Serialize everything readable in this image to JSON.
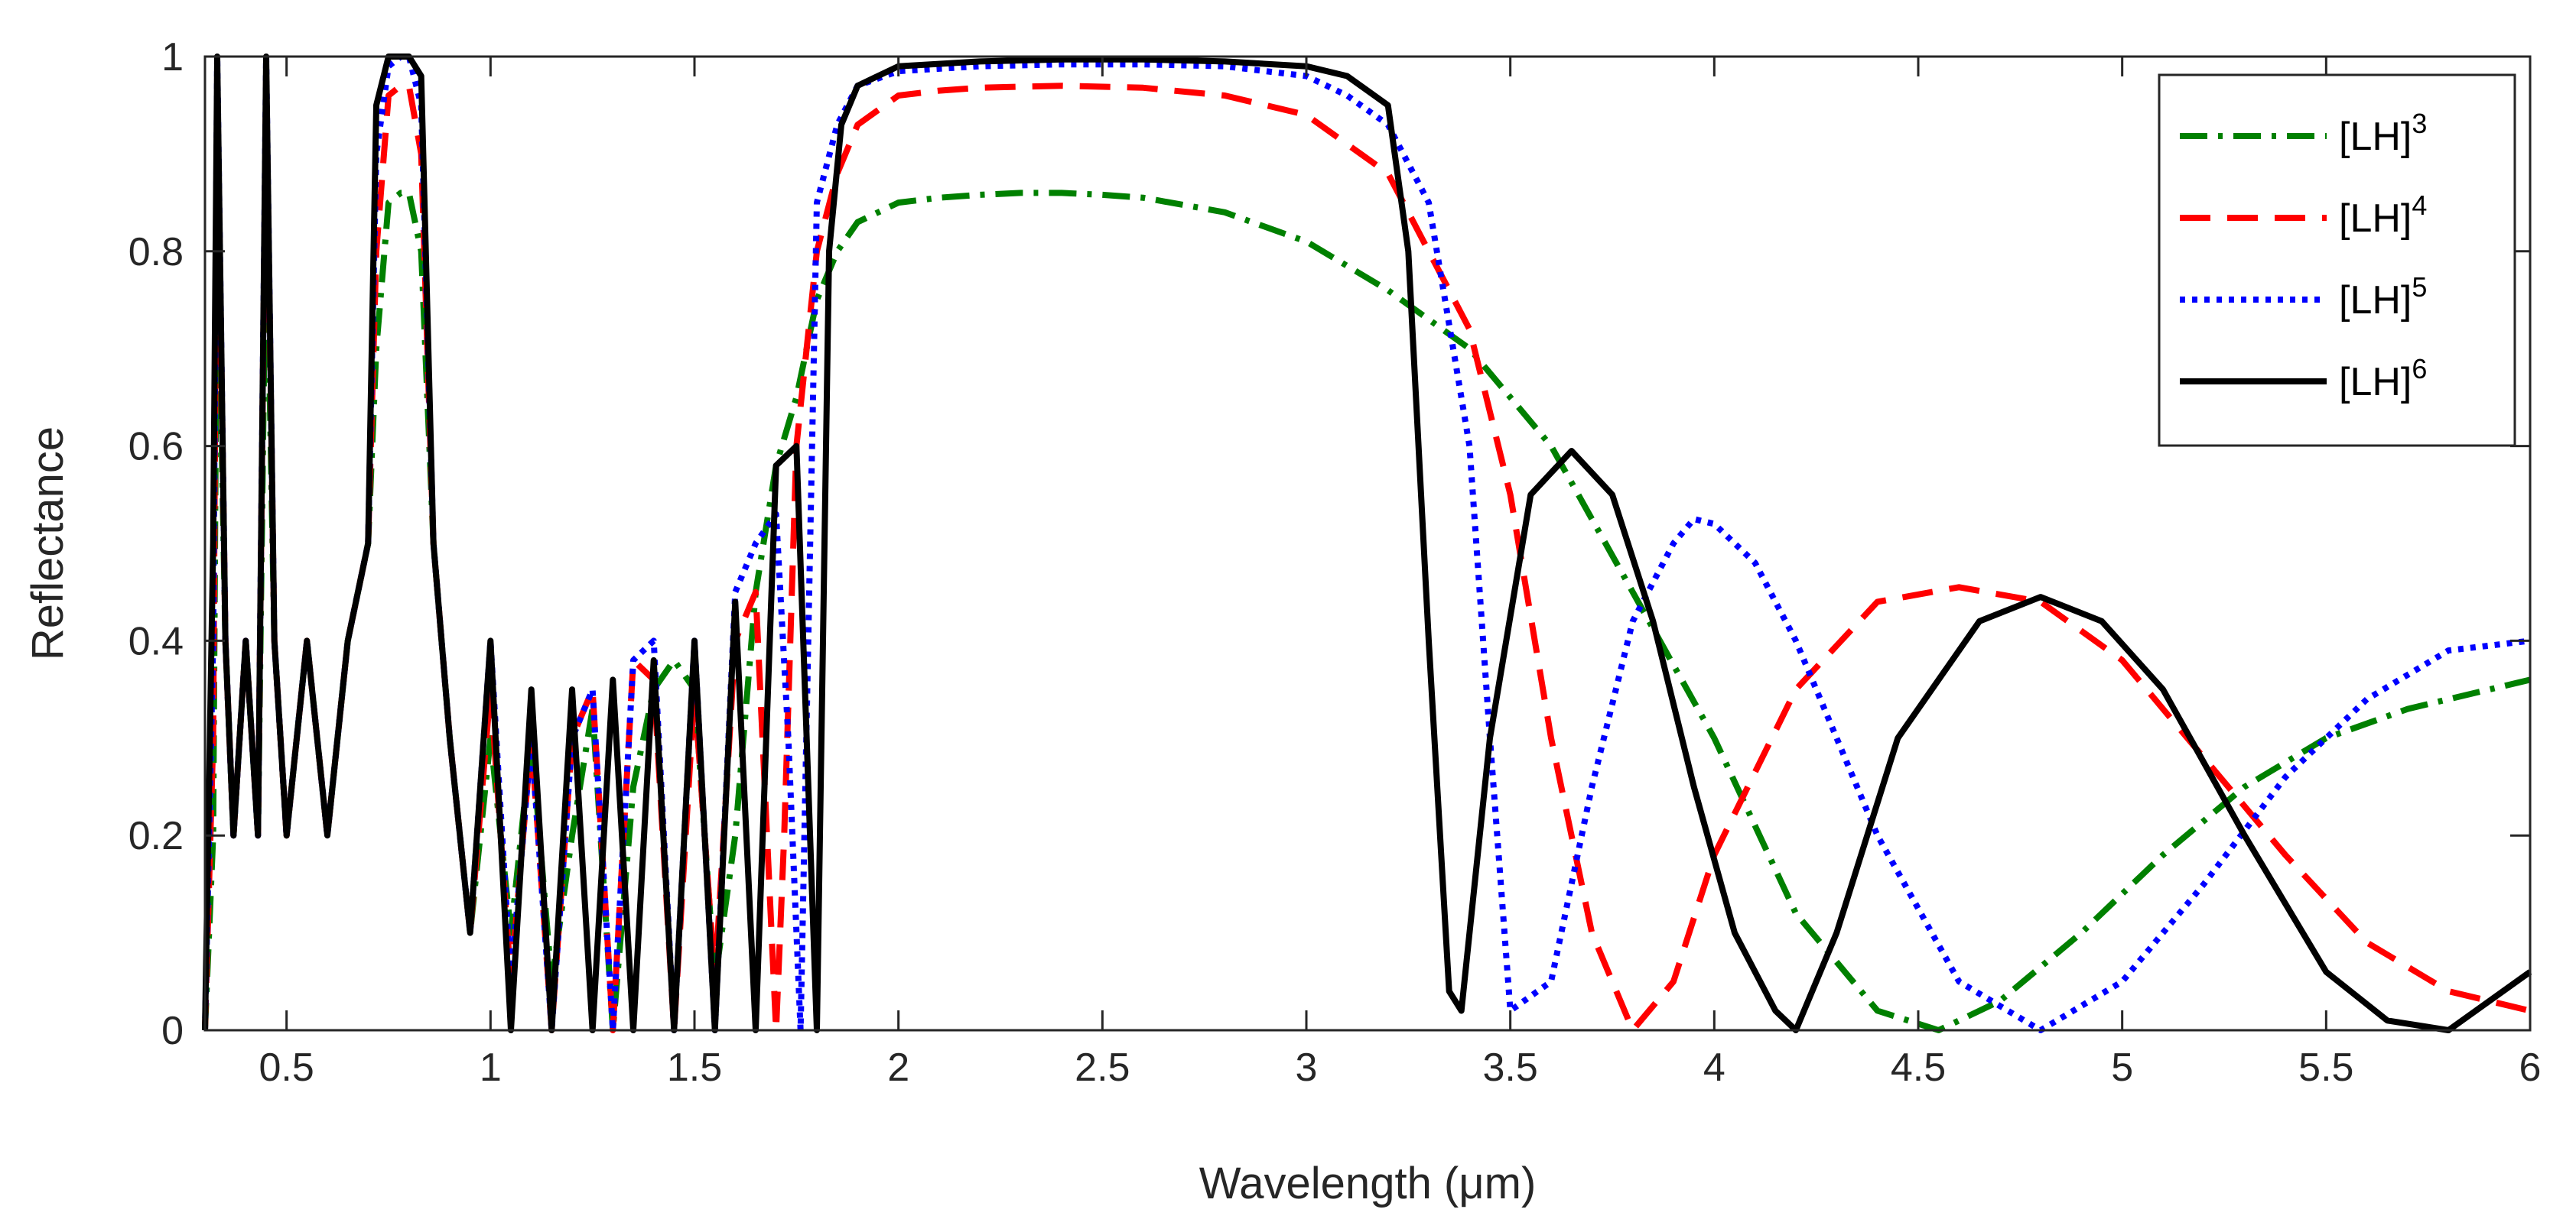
{
  "chart_data": {
    "type": "line",
    "title": "",
    "xlabel": "Wavelength (μm)",
    "ylabel": "Reflectance",
    "xlim": [
      0.3,
      6
    ],
    "ylim": [
      0,
      1
    ],
    "xticks": [
      0.5,
      1,
      1.5,
      2,
      2.5,
      3,
      3.5,
      4,
      4.5,
      5,
      5.5,
      6
    ],
    "xtick_labels": [
      "0.5",
      "1",
      "1.5",
      "2",
      "2.5",
      "3",
      "3.5",
      "4",
      "4.5",
      "5",
      "5.5",
      "6"
    ],
    "yticks": [
      0,
      0.2,
      0.4,
      0.6,
      0.8,
      1
    ],
    "ytick_labels": [
      "0",
      "0.2",
      "0.4",
      "0.6",
      "0.8",
      "1"
    ],
    "grid": false,
    "legend_position": "top-right",
    "series": [
      {
        "name": "[LH]",
        "superscript": "3",
        "color": "#008000",
        "style": "dash-dot",
        "x": [
          0.3,
          0.32,
          0.33,
          0.35,
          0.37,
          0.4,
          0.43,
          0.45,
          0.47,
          0.5,
          0.55,
          0.6,
          0.65,
          0.7,
          0.72,
          0.75,
          0.78,
          0.8,
          0.83,
          0.86,
          0.9,
          0.95,
          1.0,
          1.05,
          1.1,
          1.15,
          1.2,
          1.25,
          1.3,
          1.35,
          1.4,
          1.45,
          1.5,
          1.55,
          1.6,
          1.65,
          1.7,
          1.75,
          1.8,
          1.85,
          1.9,
          2.0,
          2.1,
          2.2,
          2.3,
          2.4,
          2.5,
          2.6,
          2.8,
          3.0,
          3.2,
          3.4,
          3.6,
          3.8,
          4.0,
          4.2,
          4.4,
          4.55,
          4.7,
          4.9,
          5.1,
          5.3,
          5.5,
          5.7,
          5.9,
          6.0
        ],
        "y": [
          0.0,
          0.2,
          0.85,
          0.4,
          0.2,
          0.4,
          0.2,
          0.85,
          0.4,
          0.2,
          0.4,
          0.2,
          0.4,
          0.5,
          0.7,
          0.85,
          0.86,
          0.86,
          0.8,
          0.5,
          0.3,
          0.1,
          0.3,
          0.1,
          0.3,
          0.05,
          0.2,
          0.33,
          0.0,
          0.25,
          0.35,
          0.38,
          0.35,
          0.05,
          0.2,
          0.45,
          0.58,
          0.65,
          0.75,
          0.8,
          0.83,
          0.85,
          0.855,
          0.858,
          0.86,
          0.86,
          0.858,
          0.855,
          0.84,
          0.81,
          0.76,
          0.7,
          0.6,
          0.45,
          0.3,
          0.12,
          0.02,
          0.0,
          0.03,
          0.1,
          0.18,
          0.25,
          0.3,
          0.33,
          0.35,
          0.36
        ]
      },
      {
        "name": "[LH]",
        "superscript": "4",
        "color": "#ff0000",
        "style": "dashed",
        "x": [
          0.3,
          0.32,
          0.33,
          0.35,
          0.37,
          0.4,
          0.43,
          0.45,
          0.47,
          0.5,
          0.55,
          0.6,
          0.65,
          0.7,
          0.72,
          0.75,
          0.78,
          0.8,
          0.83,
          0.86,
          0.9,
          0.95,
          1.0,
          1.05,
          1.1,
          1.15,
          1.2,
          1.25,
          1.3,
          1.35,
          1.4,
          1.45,
          1.5,
          1.55,
          1.6,
          1.65,
          1.7,
          1.72,
          1.75,
          1.8,
          1.85,
          1.9,
          2.0,
          2.1,
          2.2,
          2.4,
          2.6,
          2.8,
          3.0,
          3.2,
          3.3,
          3.4,
          3.5,
          3.6,
          3.7,
          3.8,
          3.9,
          4.0,
          4.2,
          4.4,
          4.6,
          4.8,
          5.0,
          5.2,
          5.4,
          5.6,
          5.8,
          6.0
        ],
        "y": [
          0.0,
          0.3,
          0.98,
          0.4,
          0.2,
          0.4,
          0.2,
          0.98,
          0.4,
          0.2,
          0.4,
          0.2,
          0.4,
          0.5,
          0.8,
          0.96,
          0.97,
          0.97,
          0.9,
          0.5,
          0.3,
          0.1,
          0.35,
          0.05,
          0.3,
          0.0,
          0.3,
          0.35,
          0.0,
          0.38,
          0.36,
          0.0,
          0.35,
          0.05,
          0.4,
          0.45,
          0.0,
          0.2,
          0.6,
          0.8,
          0.88,
          0.93,
          0.96,
          0.965,
          0.968,
          0.97,
          0.968,
          0.96,
          0.94,
          0.88,
          0.8,
          0.72,
          0.55,
          0.3,
          0.1,
          0.0,
          0.05,
          0.18,
          0.35,
          0.44,
          0.455,
          0.44,
          0.38,
          0.28,
          0.18,
          0.09,
          0.04,
          0.02
        ]
      },
      {
        "name": "[LH]",
        "superscript": "5",
        "color": "#0000ff",
        "style": "dotted",
        "x": [
          0.3,
          0.32,
          0.33,
          0.35,
          0.37,
          0.4,
          0.43,
          0.45,
          0.47,
          0.5,
          0.55,
          0.6,
          0.65,
          0.7,
          0.72,
          0.75,
          0.78,
          0.8,
          0.83,
          0.86,
          0.9,
          0.95,
          1.0,
          1.05,
          1.1,
          1.15,
          1.2,
          1.25,
          1.3,
          1.35,
          1.4,
          1.45,
          1.5,
          1.55,
          1.6,
          1.65,
          1.7,
          1.73,
          1.76,
          1.8,
          1.85,
          1.9,
          2.0,
          2.2,
          2.4,
          2.6,
          2.8,
          3.0,
          3.1,
          3.2,
          3.3,
          3.4,
          3.45,
          3.5,
          3.6,
          3.7,
          3.8,
          3.9,
          3.95,
          4.0,
          4.1,
          4.2,
          4.4,
          4.6,
          4.8,
          5.0,
          5.2,
          5.4,
          5.6,
          5.8,
          6.0
        ],
        "y": [
          0.0,
          0.4,
          1.0,
          0.4,
          0.2,
          0.4,
          0.2,
          1.0,
          0.4,
          0.2,
          0.4,
          0.2,
          0.4,
          0.5,
          0.9,
          0.99,
          1.0,
          1.0,
          0.95,
          0.5,
          0.3,
          0.1,
          0.4,
          0.05,
          0.3,
          0.0,
          0.3,
          0.35,
          0.0,
          0.38,
          0.4,
          0.0,
          0.4,
          0.0,
          0.45,
          0.5,
          0.53,
          0.3,
          0.0,
          0.85,
          0.93,
          0.97,
          0.985,
          0.99,
          0.992,
          0.992,
          0.99,
          0.98,
          0.96,
          0.93,
          0.85,
          0.6,
          0.3,
          0.02,
          0.05,
          0.25,
          0.42,
          0.5,
          0.525,
          0.52,
          0.48,
          0.4,
          0.2,
          0.05,
          0.0,
          0.05,
          0.15,
          0.26,
          0.34,
          0.39,
          0.4
        ]
      },
      {
        "name": "[LH]",
        "superscript": "6",
        "color": "#000000",
        "style": "solid",
        "x": [
          0.3,
          0.32,
          0.33,
          0.35,
          0.37,
          0.4,
          0.43,
          0.45,
          0.47,
          0.5,
          0.55,
          0.6,
          0.65,
          0.7,
          0.72,
          0.75,
          0.78,
          0.8,
          0.83,
          0.86,
          0.9,
          0.95,
          1.0,
          1.05,
          1.1,
          1.15,
          1.2,
          1.25,
          1.3,
          1.35,
          1.4,
          1.45,
          1.5,
          1.55,
          1.6,
          1.65,
          1.7,
          1.75,
          1.8,
          1.83,
          1.86,
          1.9,
          2.0,
          2.2,
          2.4,
          2.6,
          2.8,
          3.0,
          3.1,
          3.2,
          3.25,
          3.3,
          3.35,
          3.38,
          3.45,
          3.55,
          3.65,
          3.75,
          3.85,
          3.95,
          4.05,
          4.15,
          4.2,
          4.3,
          4.45,
          4.65,
          4.8,
          4.95,
          5.1,
          5.3,
          5.5,
          5.65,
          5.8,
          6.0
        ],
        "y": [
          0.0,
          0.5,
          1.0,
          0.4,
          0.2,
          0.4,
          0.2,
          1.0,
          0.4,
          0.2,
          0.4,
          0.2,
          0.4,
          0.5,
          0.95,
          1.0,
          1.0,
          1.0,
          0.98,
          0.5,
          0.3,
          0.1,
          0.4,
          0.0,
          0.35,
          0.0,
          0.35,
          0.0,
          0.36,
          0.0,
          0.38,
          0.0,
          0.4,
          0.0,
          0.44,
          0.0,
          0.58,
          0.6,
          0.0,
          0.8,
          0.93,
          0.97,
          0.99,
          0.995,
          0.997,
          0.997,
          0.995,
          0.99,
          0.98,
          0.95,
          0.8,
          0.4,
          0.04,
          0.02,
          0.3,
          0.55,
          0.595,
          0.55,
          0.42,
          0.25,
          0.1,
          0.02,
          0.0,
          0.1,
          0.3,
          0.42,
          0.445,
          0.42,
          0.35,
          0.2,
          0.06,
          0.01,
          0.0,
          0.06
        ]
      }
    ]
  }
}
